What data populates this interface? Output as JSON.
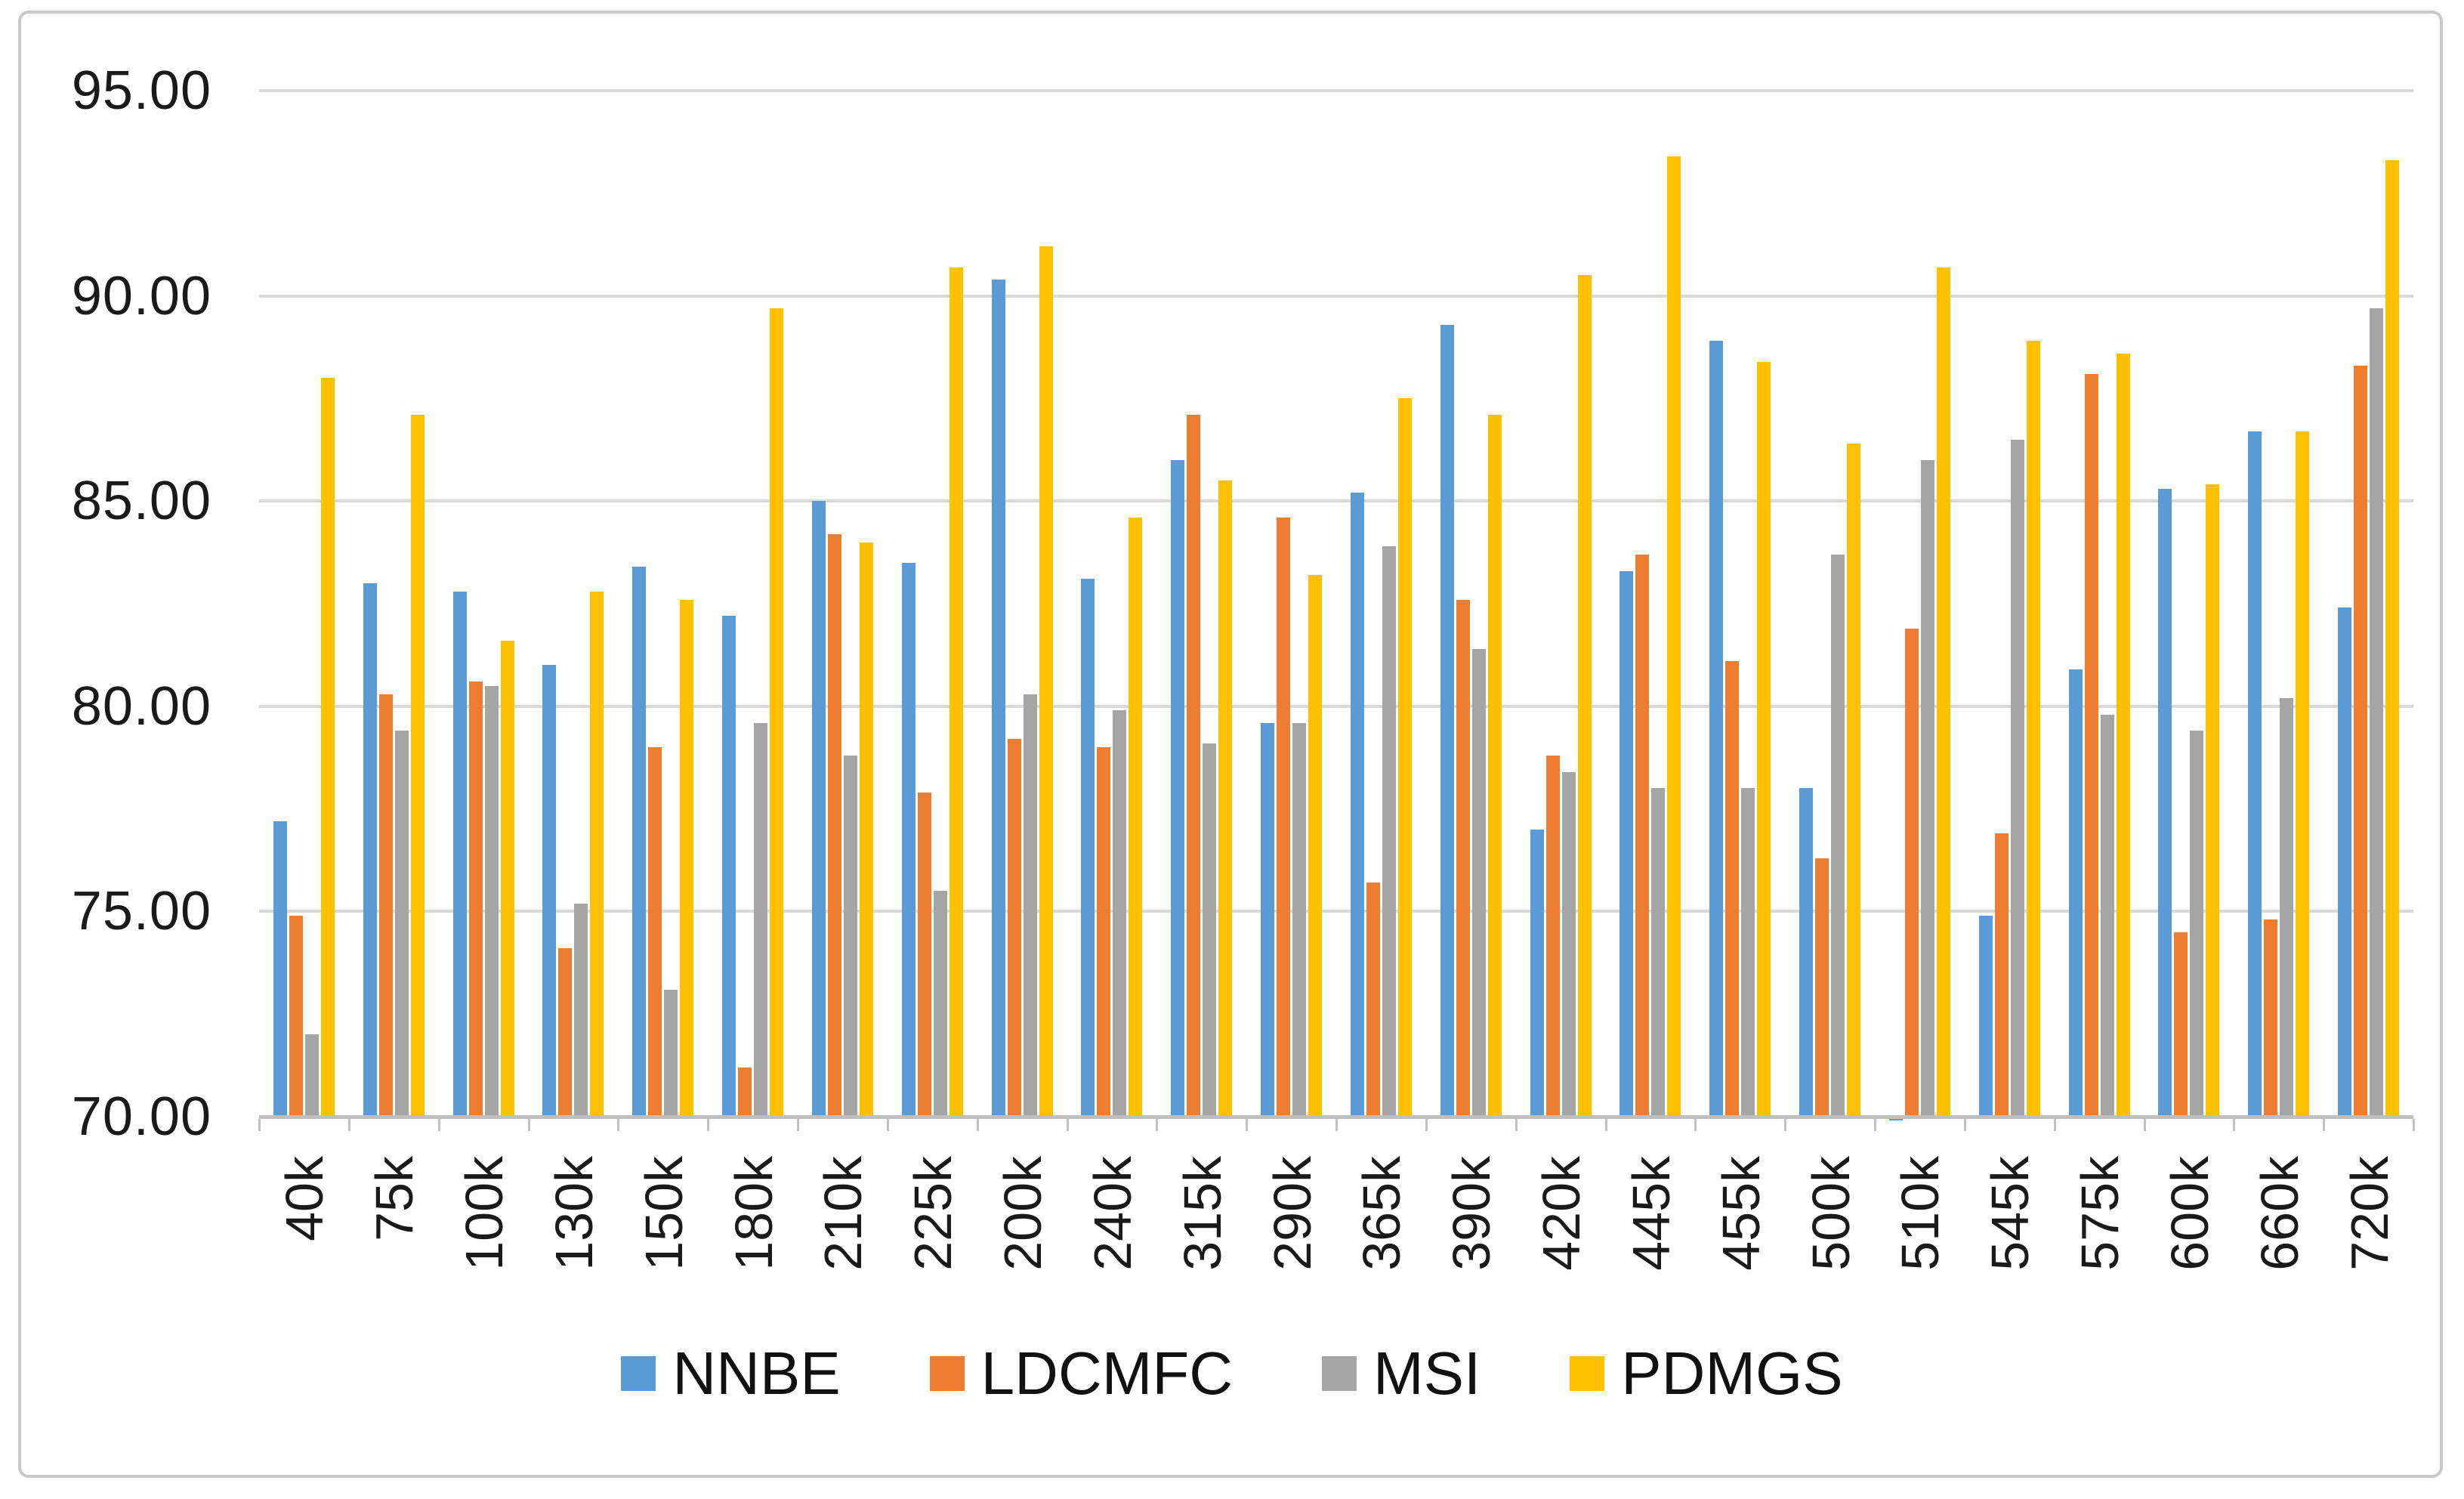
{
  "chart_data": {
    "type": "bar",
    "title": "",
    "categories": [
      "40k",
      "75k",
      "100k",
      "130k",
      "150k",
      "180k",
      "210k",
      "225k",
      "200k",
      "240k",
      "315k",
      "290k",
      "365k",
      "390k",
      "420k",
      "445k",
      "455k",
      "500k",
      "510k",
      "545k",
      "575k",
      "600k",
      "660k",
      "720k"
    ],
    "series": [
      {
        "name": "NNBE",
        "color": "#5B9BD5",
        "values": [
          77.2,
          83.0,
          82.8,
          81.0,
          83.4,
          82.2,
          85.0,
          83.5,
          90.4,
          83.1,
          86.0,
          79.6,
          85.2,
          89.3,
          77.0,
          83.3,
          88.9,
          78.0,
          69.9,
          74.9,
          80.9,
          85.3,
          86.7,
          82.4
        ]
      },
      {
        "name": "LDCMFC",
        "color": "#ED7D31",
        "values": [
          74.9,
          80.3,
          80.6,
          74.1,
          79.0,
          71.2,
          84.2,
          77.9,
          79.2,
          79.0,
          87.1,
          84.6,
          75.7,
          82.6,
          78.8,
          83.7,
          81.1,
          76.3,
          81.9,
          76.9,
          88.1,
          74.5,
          74.8,
          88.3
        ]
      },
      {
        "name": "MSI",
        "color": "#A5A5A5",
        "values": [
          72.0,
          79.4,
          80.5,
          75.2,
          73.1,
          79.6,
          78.8,
          75.5,
          80.3,
          79.9,
          79.1,
          79.6,
          83.9,
          81.4,
          78.4,
          78.0,
          78.0,
          83.7,
          86.0,
          86.5,
          79.8,
          79.4,
          80.2,
          89.7
        ]
      },
      {
        "name": "PDMGS",
        "color": "#FFC000",
        "values": [
          88.0,
          87.1,
          81.6,
          82.8,
          82.6,
          89.7,
          84.0,
          90.7,
          91.2,
          84.6,
          85.5,
          83.2,
          87.5,
          87.1,
          90.5,
          93.4,
          88.4,
          86.4,
          90.7,
          88.9,
          88.6,
          85.4,
          86.7,
          93.3
        ]
      }
    ],
    "ylim": [
      70,
      95
    ],
    "ytick_step": 5,
    "ytick_labels": [
      "70.00",
      "75.00",
      "80.00",
      "85.00",
      "90.00",
      "95.00"
    ],
    "grid": true,
    "legend_position": "bottom",
    "axis_colors": {
      "gridline": "#D9D9D9",
      "axis_line": "#BFBFBF",
      "tick_mark": "#C2C2C2",
      "frame": "#C9C9C9",
      "text": "#1A1A1A"
    }
  }
}
